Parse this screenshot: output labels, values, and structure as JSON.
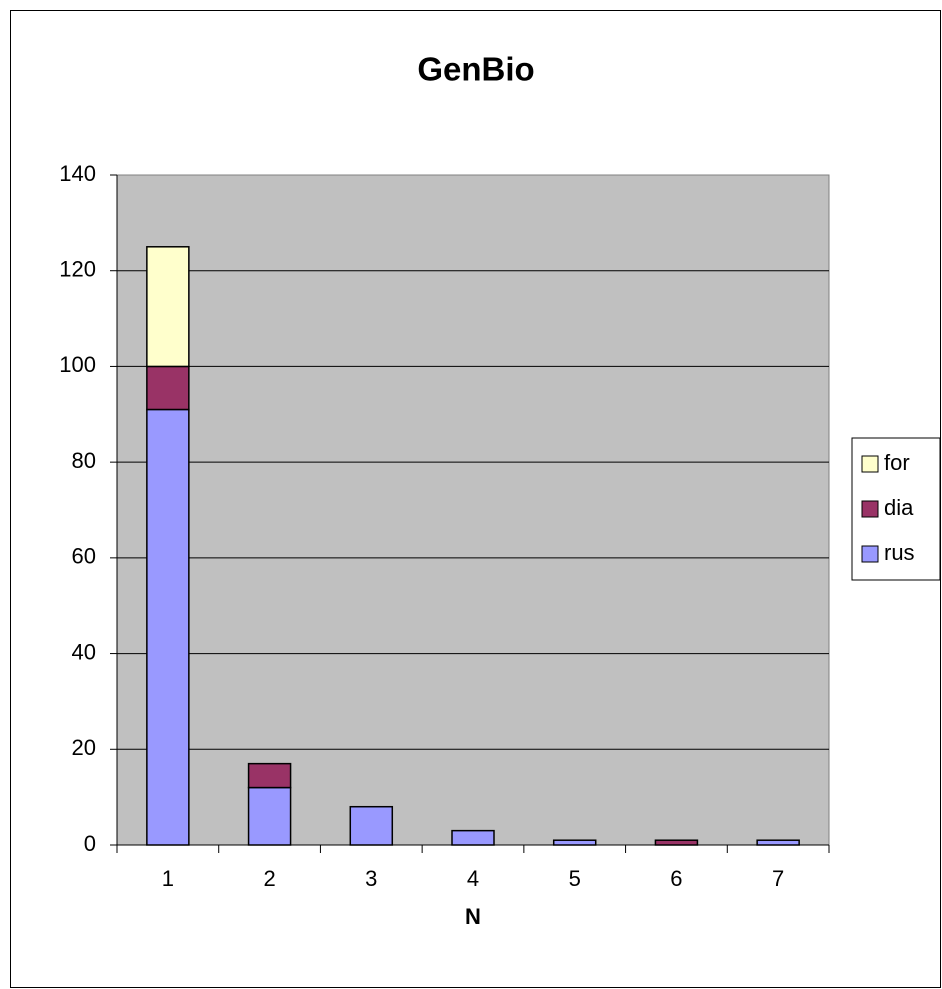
{
  "chart_data": {
    "type": "stacked_bar",
    "title": "GenBio",
    "x_label": "N",
    "categories": [
      "1",
      "2",
      "3",
      "4",
      "5",
      "6",
      "7"
    ],
    "series": [
      {
        "name": "rus",
        "color": "#9999ff",
        "values": [
          91,
          12,
          8,
          3,
          1,
          0,
          1
        ]
      },
      {
        "name": "dia",
        "color": "#993366",
        "values": [
          9,
          5,
          0,
          0,
          0,
          1,
          0
        ]
      },
      {
        "name": "for",
        "color": "#ffffcc",
        "values": [
          25,
          0,
          0,
          0,
          0,
          0,
          0
        ]
      }
    ],
    "ylim": [
      0,
      140
    ],
    "yticks": [
      0,
      20,
      40,
      60,
      80,
      100,
      120,
      140
    ],
    "grid": true,
    "legend": "right"
  }
}
